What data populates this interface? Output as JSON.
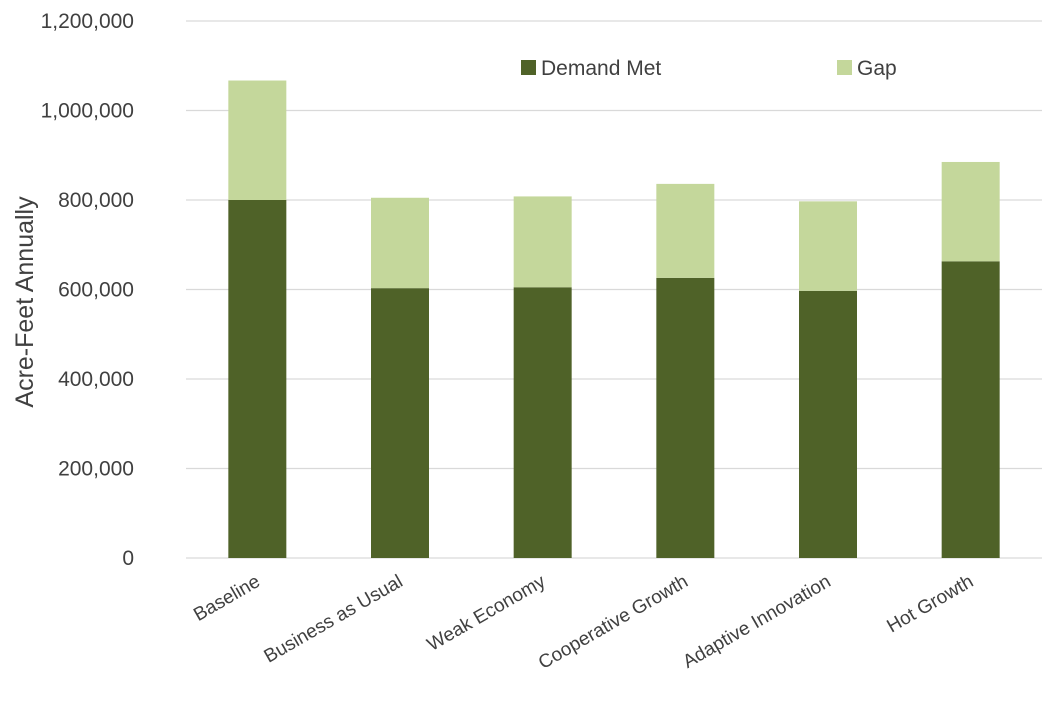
{
  "chart_data": {
    "type": "bar",
    "stacked": true,
    "title": "",
    "xlabel": "",
    "ylabel": "Acre-Feet Annually",
    "ylim": [
      0,
      1200000
    ],
    "yticks": [
      0,
      200000,
      400000,
      600000,
      800000,
      1000000,
      1200000
    ],
    "ytick_labels": [
      "0",
      "200,000",
      "400,000",
      "600,000",
      "800,000",
      "1,000,000",
      "1,200,000"
    ],
    "grid": true,
    "legend_position": "top-right",
    "categories": [
      "Baseline",
      "Business as Usual",
      "Weak Economy",
      "Cooperative Growth",
      "Adaptive Innovation",
      "Hot Growth"
    ],
    "series": [
      {
        "name": "Demand Met",
        "color": "#4f6228",
        "values": [
          800000,
          603000,
          605000,
          626000,
          597000,
          663000
        ]
      },
      {
        "name": "Gap",
        "color": "#c4d79b",
        "values": [
          267000,
          202000,
          203000,
          210000,
          200000,
          222000
        ]
      }
    ]
  }
}
